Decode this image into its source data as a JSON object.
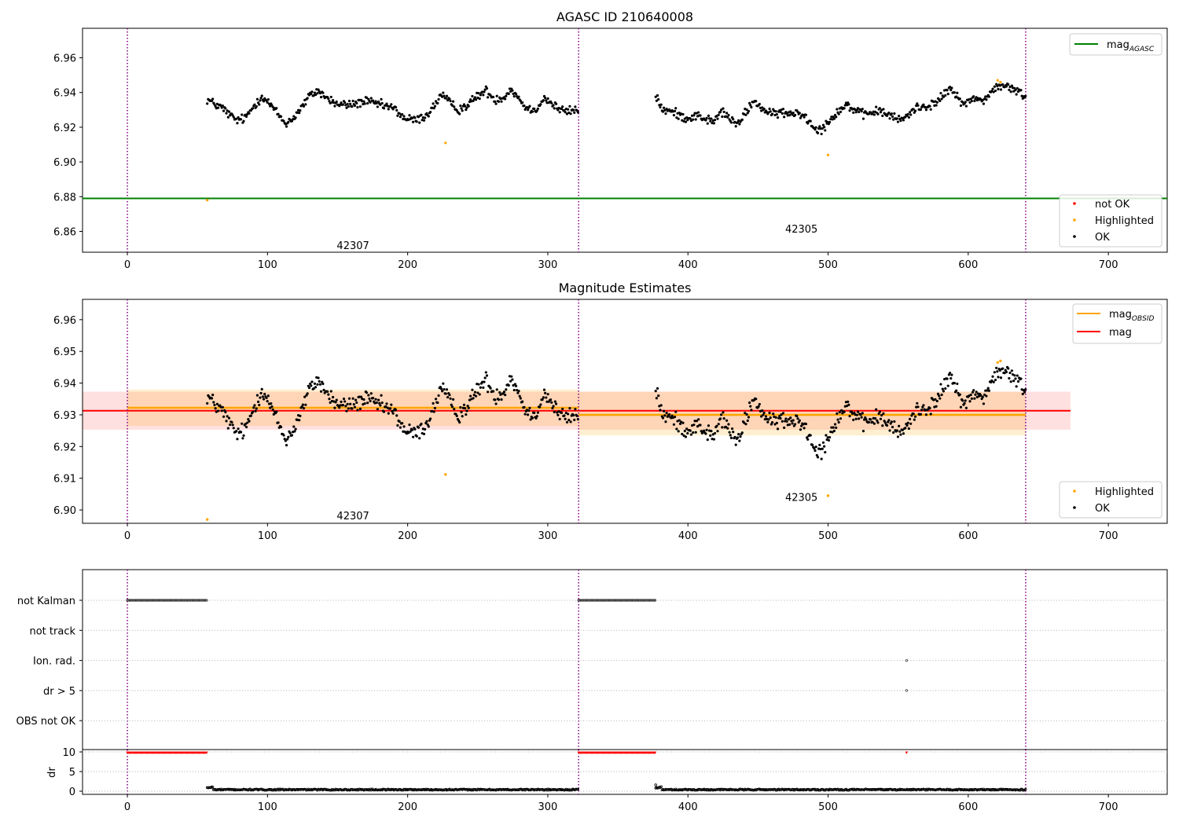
{
  "chart_data": [
    {
      "type": "scatter",
      "title": "AGASC ID 210640008",
      "xlim": [
        -32,
        742
      ],
      "ylim": [
        6.848,
        6.977
      ],
      "xticks": [
        0,
        100,
        200,
        300,
        400,
        500,
        600,
        700
      ],
      "yticks": [
        6.86,
        6.88,
        6.9,
        6.92,
        6.94,
        6.96
      ],
      "ytick_labels": [
        "6.86",
        "6.88",
        "6.90",
        "6.92",
        "6.94",
        "6.96"
      ],
      "vlines": [
        0,
        322,
        641
      ],
      "hline": {
        "name": "mag_AGASC",
        "value": 6.879,
        "color": "#008000"
      },
      "obsid_labels": [
        {
          "text": "42307",
          "x": 161,
          "y": 6.852
        },
        {
          "text": "42305",
          "x": 481,
          "y": 6.8615
        }
      ],
      "highlighted_points": [
        [
          57,
          6.878
        ],
        [
          227,
          6.911
        ],
        [
          500,
          6.904
        ],
        [
          621,
          6.947
        ],
        [
          623,
          6.946
        ]
      ],
      "legend_lines": [
        {
          "label": "mag",
          "sub": "AGASC",
          "color": "#008000"
        }
      ],
      "legend_points": [
        {
          "label": "not OK",
          "color": "#ff0000"
        },
        {
          "label": "Highlighted",
          "color": "#ffa500"
        },
        {
          "label": "OK",
          "color": "#000000"
        }
      ],
      "series": {
        "segments": [
          {
            "x0": 57,
            "x1": 322,
            "knots": [
              [
                57,
                6.936
              ],
              [
                63,
                6.933
              ],
              [
                68,
                6.931
              ],
              [
                73,
                6.927
              ],
              [
                78,
                6.924
              ],
              [
                84,
                6.925
              ],
              [
                90,
                6.932
              ],
              [
                96,
                6.938
              ],
              [
                102,
                6.933
              ],
              [
                107,
                6.928
              ],
              [
                113,
                6.922
              ],
              [
                118,
                6.925
              ],
              [
                124,
                6.931
              ],
              [
                130,
                6.938
              ],
              [
                136,
                6.941
              ],
              [
                142,
                6.937
              ],
              [
                150,
                6.933
              ],
              [
                160,
                6.933
              ],
              [
                170,
                6.935
              ],
              [
                180,
                6.933
              ],
              [
                190,
                6.931
              ],
              [
                198,
                6.925
              ],
              [
                205,
                6.924
              ],
              [
                212,
                6.926
              ],
              [
                218,
                6.931
              ],
              [
                224,
                6.939
              ],
              [
                230,
                6.934
              ],
              [
                236,
                6.93
              ],
              [
                243,
                6.933
              ],
              [
                250,
                6.938
              ],
              [
                256,
                6.941
              ],
              [
                262,
                6.936
              ],
              [
                268,
                6.937
              ],
              [
                274,
                6.942
              ],
              [
                280,
                6.936
              ],
              [
                286,
                6.93
              ],
              [
                292,
                6.931
              ],
              [
                298,
                6.937
              ],
              [
                305,
                6.932
              ],
              [
                312,
                6.929
              ],
              [
                322,
                6.93
              ]
            ]
          },
          {
            "x0": 377,
            "x1": 641,
            "knots": [
              [
                377,
                6.938
              ],
              [
                382,
                6.93
              ],
              [
                388,
                6.929
              ],
              [
                394,
                6.927
              ],
              [
                400,
                6.925
              ],
              [
                406,
                6.927
              ],
              [
                412,
                6.925
              ],
              [
                418,
                6.923
              ],
              [
                424,
                6.929
              ],
              [
                430,
                6.925
              ],
              [
                436,
                6.921
              ],
              [
                442,
                6.93
              ],
              [
                448,
                6.935
              ],
              [
                454,
                6.93
              ],
              [
                460,
                6.927
              ],
              [
                466,
                6.929
              ],
              [
                472,
                6.927
              ],
              [
                478,
                6.929
              ],
              [
                484,
                6.926
              ],
              [
                490,
                6.92
              ],
              [
                496,
                6.919
              ],
              [
                502,
                6.925
              ],
              [
                508,
                6.93
              ],
              [
                514,
                6.933
              ],
              [
                520,
                6.929
              ],
              [
                526,
                6.927
              ],
              [
                532,
                6.929
              ],
              [
                538,
                6.929
              ],
              [
                544,
                6.927
              ],
              [
                550,
                6.924
              ],
              [
                556,
                6.926
              ],
              [
                562,
                6.931
              ],
              [
                568,
                6.932
              ],
              [
                574,
                6.933
              ],
              [
                580,
                6.936
              ],
              [
                586,
                6.942
              ],
              [
                592,
                6.938
              ],
              [
                598,
                6.933
              ],
              [
                604,
                6.937
              ],
              [
                610,
                6.935
              ],
              [
                616,
                6.94
              ],
              [
                622,
                6.944
              ],
              [
                628,
                6.943
              ],
              [
                634,
                6.941
              ],
              [
                641,
                6.938
              ]
            ]
          }
        ],
        "step": 0.65,
        "noise": 0.0013
      }
    },
    {
      "type": "scatter",
      "title": "Magnitude Estimates",
      "xlim": [
        -32,
        742
      ],
      "ylim": [
        6.8958,
        6.9664
      ],
      "xticks": [
        0,
        100,
        200,
        300,
        400,
        500,
        600,
        700
      ],
      "yticks": [
        6.9,
        6.91,
        6.92,
        6.93,
        6.94,
        6.95,
        6.96
      ],
      "ytick_labels": [
        "6.90",
        "6.91",
        "6.92",
        "6.93",
        "6.94",
        "6.95",
        "6.96"
      ],
      "vlines": [
        0,
        322,
        641
      ],
      "mag_line": {
        "name": "mag",
        "value": 6.9313,
        "x0": -32,
        "x1": 673,
        "band": [
          6.9253,
          6.9373
        ],
        "color": "#ff0000"
      },
      "obsid_mags": [
        {
          "label": "42307",
          "x0": 0,
          "x1": 322,
          "value": 6.9322,
          "band": [
            6.9265,
            6.938
          ]
        },
        {
          "label": "42305",
          "x0": 322,
          "x1": 641,
          "value": 6.93,
          "band": [
            6.9235,
            6.9373
          ]
        }
      ],
      "obsid_labels": [
        {
          "text": "42307",
          "x": 161,
          "y": 6.8983
        },
        {
          "text": "42305",
          "x": 481,
          "y": 6.9041
        }
      ],
      "highlighted_points": [
        [
          57,
          6.897
        ],
        [
          227,
          6.9112
        ],
        [
          500,
          6.9045
        ],
        [
          621,
          6.9465
        ],
        [
          623,
          6.947
        ]
      ],
      "legend_lines": [
        {
          "label": "mag",
          "sub": "OBSID",
          "color": "#ffa500"
        },
        {
          "label": "mag",
          "sub": "",
          "color": "#ff0000"
        }
      ],
      "legend_points": [
        {
          "label": "Highlighted",
          "color": "#ffa500"
        },
        {
          "label": "OK",
          "color": "#000000"
        }
      ]
    },
    {
      "type": "scatter",
      "xlim": [
        -32,
        742
      ],
      "xticks": [
        0,
        100,
        200,
        300,
        400,
        500,
        600,
        700
      ],
      "vlines": [
        0,
        322,
        641
      ],
      "flag_rows": [
        "not Kalman",
        "not track",
        "Ion. rad.",
        "dr > 5",
        "OBS not OK"
      ],
      "flags": {
        "not Kalman": [
          [
            0,
            57
          ],
          [
            322,
            377
          ]
        ],
        "not track": [],
        "Ion. rad.": [
          [
            556,
            556
          ]
        ],
        "dr > 5": [
          [
            556,
            556
          ]
        ],
        "OBS not OK": []
      },
      "dr": {
        "ylabel": "dr",
        "yticks": [
          0,
          5,
          10
        ],
        "ylim": [
          -0.8,
          10.6
        ],
        "capped_value": 9.8,
        "capped_ranges": [
          [
            0,
            57
          ],
          [
            322,
            377
          ],
          [
            556,
            556
          ]
        ],
        "segments": [
          [
            57,
            322
          ],
          [
            377,
            641
          ]
        ]
      }
    }
  ]
}
